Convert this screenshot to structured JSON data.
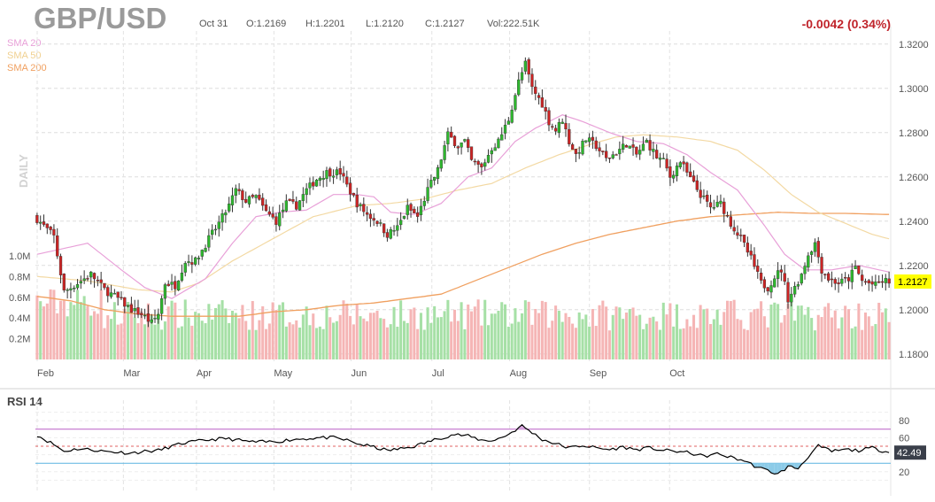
{
  "header": {
    "symbol": "GBP/USD",
    "date": "Oct 31",
    "open": "O:1.2169",
    "high": "H:1.2201",
    "low": "L:1.2120",
    "close": "C:1.2127",
    "volume": "Vol:222.51K",
    "change": "-0.0042 (0.34%)"
  },
  "legend": {
    "sma20": "SMA 20",
    "sma50": "SMA 50",
    "sma200": "SMA 200",
    "period": "DAILY"
  },
  "colors": {
    "up": "#2eb82e",
    "down": "#cc2424",
    "volume_up": "#a6e0a6",
    "volume_down": "#f5b5b5",
    "sma20": "#e8a0d8",
    "sma50": "#f3d9a3",
    "sma200": "#f0a060",
    "rsi_line": "#000000",
    "rsi_upper": "#b95fc6",
    "rsi_lower": "#5ab4e0",
    "rsi_mid": "#e06060",
    "last_price_bg": "#ffff00"
  },
  "chart_data": [
    {
      "type": "candlestick",
      "title": "GBP/USD",
      "x_tick_labels": [
        "Feb",
        "Mar",
        "Apr",
        "May",
        "Jun",
        "Jul",
        "Aug",
        "Sep",
        "Oct"
      ],
      "y_ticks": [
        1.18,
        1.2,
        1.22,
        1.24,
        1.26,
        1.28,
        1.3,
        1.32
      ],
      "y_tick_labels": [
        "1.1800",
        "1.2000",
        "1.2200",
        "1.2400",
        "1.2600",
        "1.2800",
        "1.3000",
        "1.3200"
      ],
      "ylim": [
        1.1775,
        1.3235
      ],
      "last_price": 1.2127,
      "last_price_label": "1.2127",
      "grid": true,
      "close_anchors": [
        [
          0,
          1.241
        ],
        [
          5,
          1.233
        ],
        [
          8,
          1.208
        ],
        [
          12,
          1.212
        ],
        [
          16,
          1.216
        ],
        [
          20,
          1.209
        ],
        [
          24,
          1.205
        ],
        [
          28,
          1.2
        ],
        [
          31,
          1.198
        ],
        [
          34,
          1.194
        ],
        [
          36,
          1.198
        ],
        [
          38,
          1.212
        ],
        [
          41,
          1.211
        ],
        [
          44,
          1.222
        ],
        [
          47,
          1.222
        ],
        [
          51,
          1.232
        ],
        [
          54,
          1.239
        ],
        [
          57,
          1.247
        ],
        [
          59,
          1.254
        ],
        [
          62,
          1.249
        ],
        [
          65,
          1.251
        ],
        [
          68,
          1.244
        ],
        [
          71,
          1.24
        ],
        [
          74,
          1.248
        ],
        [
          77,
          1.247
        ],
        [
          80,
          1.254
        ],
        [
          83,
          1.259
        ],
        [
          86,
          1.262
        ],
        [
          89,
          1.262
        ],
        [
          90,
          1.262
        ],
        [
          92,
          1.256
        ],
        [
          95,
          1.248
        ],
        [
          98,
          1.243
        ],
        [
          101,
          1.24
        ],
        [
          104,
          1.234
        ],
        [
          107,
          1.237
        ],
        [
          110,
          1.246
        ],
        [
          113,
          1.242
        ],
        [
          116,
          1.254
        ],
        [
          119,
          1.263
        ],
        [
          122,
          1.279
        ],
        [
          125,
          1.274
        ],
        [
          127,
          1.276
        ],
        [
          129,
          1.267
        ],
        [
          132,
          1.264
        ],
        [
          135,
          1.273
        ],
        [
          137,
          1.276
        ],
        [
          140,
          1.286
        ],
        [
          143,
          1.303
        ],
        [
          145,
          1.311
        ],
        [
          147,
          1.3
        ],
        [
          150,
          1.293
        ],
        [
          152,
          1.285
        ],
        [
          154,
          1.281
        ],
        [
          156,
          1.286
        ],
        [
          158,
          1.276
        ],
        [
          160,
          1.27
        ],
        [
          163,
          1.277
        ],
        [
          166,
          1.274
        ],
        [
          169,
          1.268
        ],
        [
          172,
          1.271
        ],
        [
          175,
          1.275
        ],
        [
          178,
          1.27
        ],
        [
          181,
          1.276
        ],
        [
          184,
          1.269
        ],
        [
          186,
          1.267
        ],
        [
          188,
          1.26
        ],
        [
          191,
          1.267
        ],
        [
          194,
          1.259
        ],
        [
          197,
          1.252
        ],
        [
          200,
          1.246
        ],
        [
          203,
          1.248
        ],
        [
          206,
          1.239
        ],
        [
          209,
          1.232
        ],
        [
          212,
          1.223
        ],
        [
          215,
          1.212
        ],
        [
          217,
          1.21
        ],
        [
          219,
          1.215
        ],
        [
          221,
          1.218
        ],
        [
          223,
          1.205
        ],
        [
          225,
          1.21
        ],
        [
          227,
          1.216
        ],
        [
          229,
          1.225
        ],
        [
          231,
          1.23
        ],
        [
          233,
          1.218
        ],
        [
          235,
          1.214
        ],
        [
          238,
          1.212
        ],
        [
          241,
          1.214
        ],
        [
          243,
          1.219
        ],
        [
          245,
          1.213
        ],
        [
          247,
          1.212
        ],
        [
          249,
          1.211
        ],
        [
          251,
          1.213
        ],
        [
          253,
          1.2127
        ]
      ],
      "sma20_anchors": [
        [
          0,
          1.225
        ],
        [
          15,
          1.23
        ],
        [
          25,
          1.218
        ],
        [
          32,
          1.21
        ],
        [
          40,
          1.205
        ],
        [
          50,
          1.214
        ],
        [
          58,
          1.23
        ],
        [
          65,
          1.242
        ],
        [
          72,
          1.244
        ],
        [
          80,
          1.245
        ],
        [
          88,
          1.252
        ],
        [
          95,
          1.252
        ],
        [
          100,
          1.251
        ],
        [
          105,
          1.244
        ],
        [
          112,
          1.243
        ],
        [
          120,
          1.248
        ],
        [
          128,
          1.26
        ],
        [
          135,
          1.264
        ],
        [
          142,
          1.276
        ],
        [
          148,
          1.282
        ],
        [
          156,
          1.288
        ],
        [
          162,
          1.285
        ],
        [
          170,
          1.28
        ],
        [
          178,
          1.276
        ],
        [
          186,
          1.275
        ],
        [
          193,
          1.27
        ],
        [
          200,
          1.262
        ],
        [
          208,
          1.254
        ],
        [
          216,
          1.238
        ],
        [
          222,
          1.225
        ],
        [
          228,
          1.218
        ],
        [
          236,
          1.218
        ],
        [
          244,
          1.22
        ],
        [
          253,
          1.217
        ]
      ],
      "sma50_anchors": [
        [
          0,
          1.215
        ],
        [
          15,
          1.213
        ],
        [
          30,
          1.209
        ],
        [
          40,
          1.208
        ],
        [
          48,
          1.212
        ],
        [
          58,
          1.222
        ],
        [
          70,
          1.232
        ],
        [
          82,
          1.242
        ],
        [
          95,
          1.247
        ],
        [
          105,
          1.248
        ],
        [
          115,
          1.25
        ],
        [
          125,
          1.254
        ],
        [
          135,
          1.257
        ],
        [
          145,
          1.264
        ],
        [
          155,
          1.27
        ],
        [
          165,
          1.275
        ],
        [
          172,
          1.278
        ],
        [
          180,
          1.279
        ],
        [
          190,
          1.278
        ],
        [
          200,
          1.276
        ],
        [
          208,
          1.272
        ],
        [
          216,
          1.263
        ],
        [
          224,
          1.252
        ],
        [
          232,
          1.244
        ],
        [
          240,
          1.239
        ],
        [
          248,
          1.234
        ],
        [
          253,
          1.232
        ]
      ],
      "sma200_anchors": [
        [
          0,
          1.206
        ],
        [
          10,
          1.204
        ],
        [
          20,
          1.2
        ],
        [
          30,
          1.198
        ],
        [
          40,
          1.197
        ],
        [
          50,
          1.197
        ],
        [
          60,
          1.197
        ],
        [
          70,
          1.199
        ],
        [
          80,
          1.2
        ],
        [
          90,
          1.202
        ],
        [
          100,
          1.203
        ],
        [
          110,
          1.205
        ],
        [
          120,
          1.207
        ],
        [
          130,
          1.213
        ],
        [
          140,
          1.219
        ],
        [
          150,
          1.225
        ],
        [
          160,
          1.23
        ],
        [
          170,
          1.234
        ],
        [
          180,
          1.237
        ],
        [
          190,
          1.24
        ],
        [
          200,
          1.242
        ],
        [
          210,
          1.243
        ],
        [
          220,
          1.244
        ],
        [
          230,
          1.2435
        ],
        [
          240,
          1.2435
        ],
        [
          253,
          1.243
        ]
      ]
    },
    {
      "type": "bar",
      "title": "Volume",
      "y_tick_labels": [
        "1.0M",
        "0.8M",
        "0.6M",
        "0.4M",
        "0.2M"
      ],
      "y_ticks": [
        1000000,
        800000,
        600000,
        400000,
        200000
      ],
      "ylim": [
        0,
        1300000
      ]
    },
    {
      "type": "line",
      "title": "RSI 14",
      "y_ticks": [
        20,
        40,
        60,
        80
      ],
      "y_tick_labels": [
        "20",
        "40",
        "60",
        "80"
      ],
      "ylim": [
        0,
        100
      ],
      "upper_band": 70,
      "lower_band": 30,
      "last_value": 42.49,
      "last_value_label": "42.49",
      "rsi_anchors": [
        [
          0,
          63
        ],
        [
          5,
          52
        ],
        [
          8,
          44
        ],
        [
          12,
          47
        ],
        [
          16,
          46
        ],
        [
          20,
          44
        ],
        [
          24,
          43
        ],
        [
          28,
          42
        ],
        [
          32,
          44
        ],
        [
          36,
          45
        ],
        [
          40,
          50
        ],
        [
          44,
          54
        ],
        [
          48,
          56
        ],
        [
          52,
          58
        ],
        [
          56,
          59
        ],
        [
          60,
          57
        ],
        [
          64,
          55
        ],
        [
          68,
          55
        ],
        [
          72,
          56
        ],
        [
          76,
          58
        ],
        [
          80,
          59
        ],
        [
          84,
          60
        ],
        [
          88,
          60
        ],
        [
          92,
          57
        ],
        [
          96,
          52
        ],
        [
          100,
          49
        ],
        [
          104,
          45
        ],
        [
          108,
          47
        ],
        [
          112,
          50
        ],
        [
          116,
          55
        ],
        [
          120,
          60
        ],
        [
          124,
          64
        ],
        [
          128,
          62
        ],
        [
          132,
          57
        ],
        [
          136,
          57
        ],
        [
          140,
          64
        ],
        [
          144,
          74
        ],
        [
          147,
          66
        ],
        [
          150,
          58
        ],
        [
          154,
          53
        ],
        [
          158,
          48
        ],
        [
          162,
          51
        ],
        [
          166,
          48
        ],
        [
          170,
          46
        ],
        [
          174,
          49
        ],
        [
          178,
          46
        ],
        [
          182,
          48
        ],
        [
          186,
          45
        ],
        [
          190,
          44
        ],
        [
          194,
          42
        ],
        [
          198,
          38
        ],
        [
          202,
          41
        ],
        [
          206,
          37
        ],
        [
          210,
          33
        ],
        [
          214,
          25
        ],
        [
          218,
          20
        ],
        [
          220,
          17
        ],
        [
          223,
          26
        ],
        [
          226,
          24
        ],
        [
          229,
          38
        ],
        [
          232,
          50
        ],
        [
          236,
          44
        ],
        [
          240,
          46
        ],
        [
          244,
          45
        ],
        [
          248,
          48
        ],
        [
          253,
          42.49
        ]
      ]
    }
  ]
}
